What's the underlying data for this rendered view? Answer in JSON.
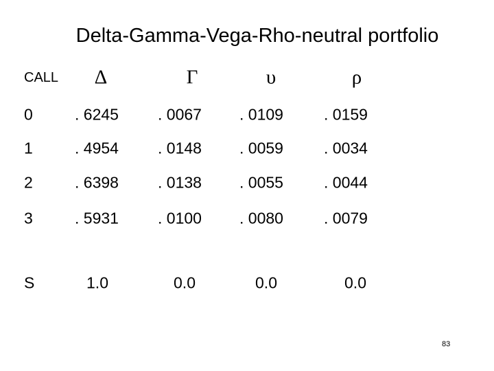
{
  "title": "Delta-Gamma-Vega-Rho-neutral portfolio",
  "table": {
    "header": [
      "CALL",
      "Δ",
      "Γ",
      "υ",
      "ρ"
    ],
    "rows": [
      [
        "0",
        ". 6245",
        ". 0067",
        ". 0109",
        ". 0159"
      ],
      [
        "1",
        ". 4954",
        ". 0148",
        ". 0059",
        ". 0034"
      ],
      [
        "2",
        ". 6398",
        ". 0138",
        ". 0055",
        ". 0044"
      ],
      [
        "3",
        ". 5931",
        ". 0100",
        ". 0080",
        ". 0079"
      ],
      [
        "S",
        "1.0",
        "0.0",
        "0.0",
        "0.0"
      ]
    ]
  },
  "page_number": "83"
}
